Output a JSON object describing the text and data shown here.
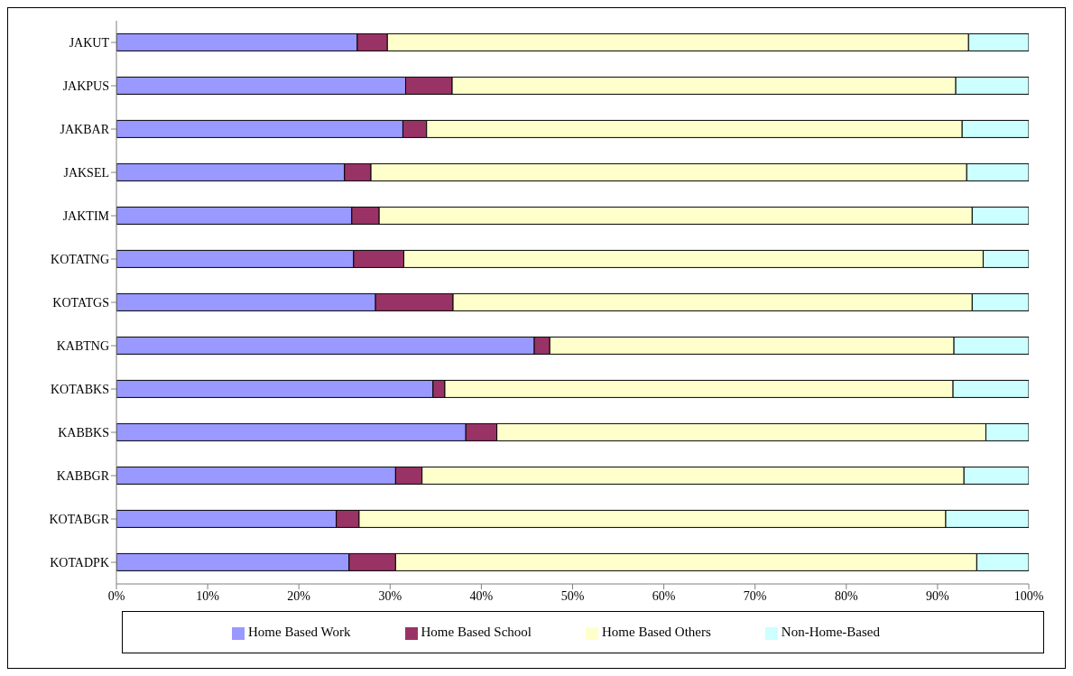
{
  "chart_data": {
    "type": "bar",
    "orientation": "horizontal",
    "stacked": true,
    "grid": false,
    "legend": "bottom",
    "categories": [
      "JAKUT",
      "JAKPUS",
      "JAKBAR",
      "JAKSEL",
      "JAKTIM",
      "KOTATNG",
      "KOTATGS",
      "KABTNG",
      "KOTABKS",
      "KABBKS",
      "KABBGR",
      "KOTABGR",
      "KOTADPK"
    ],
    "xlim": [
      0,
      100
    ],
    "xticks": [
      {
        "value": 0,
        "label": "0%"
      },
      {
        "value": 10,
        "label": "10%"
      },
      {
        "value": 20,
        "label": "20%"
      },
      {
        "value": 30,
        "label": "30%"
      },
      {
        "value": 40,
        "label": "40%"
      },
      {
        "value": 50,
        "label": "50%"
      },
      {
        "value": 60,
        "label": "60%"
      },
      {
        "value": 70,
        "label": "70%"
      },
      {
        "value": 80,
        "label": "80%"
      },
      {
        "value": 90,
        "label": "90%"
      },
      {
        "value": 100,
        "label": "100%"
      }
    ],
    "series": [
      {
        "name": "Home Based Work",
        "color": "#9999ff",
        "values": [
          26.4,
          31.7,
          31.4,
          25.0,
          25.8,
          26.0,
          28.4,
          45.8,
          34.7,
          38.3,
          30.6,
          24.1,
          25.5
        ]
      },
      {
        "name": "Home Based School",
        "color": "#993366",
        "values": [
          3.3,
          5.1,
          2.6,
          2.9,
          3.0,
          5.5,
          8.5,
          1.7,
          1.3,
          3.4,
          2.9,
          2.5,
          5.1
        ]
      },
      {
        "name": "Home Based Others",
        "color": "#ffffcc",
        "values": [
          63.7,
          55.2,
          58.7,
          65.3,
          65.0,
          63.5,
          56.9,
          44.3,
          55.7,
          53.6,
          59.4,
          64.3,
          63.7
        ]
      },
      {
        "name": "Non-Home-Based",
        "color": "#ccffff",
        "values": [
          6.6,
          8.0,
          7.3,
          6.8,
          6.2,
          5.0,
          6.2,
          8.2,
          8.3,
          4.7,
          7.1,
          9.1,
          5.7
        ]
      }
    ]
  }
}
